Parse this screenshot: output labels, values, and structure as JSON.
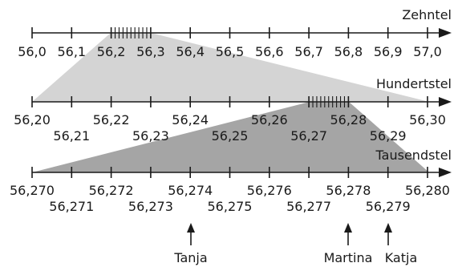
{
  "colors": {
    "light_fill": "#d4d4d4",
    "dark_fill": "#a5a5a5",
    "line": "#1a1a1a"
  },
  "scales": [
    {
      "title": "Zehntel",
      "labels_upper": [
        "56,0",
        "56,1",
        "56,2",
        "56,3",
        "56,4",
        "56,5",
        "56,6",
        "56,7",
        "56,8",
        "56,9",
        "57,0"
      ],
      "labels_lower": []
    },
    {
      "title": "Hundertstel",
      "labels_upper": [
        "56,20",
        "56,22",
        "56,24",
        "56,26",
        "56,28",
        "56,30"
      ],
      "labels_lower": [
        "56,21",
        "56,23",
        "56,25",
        "56,27",
        "56,29"
      ]
    },
    {
      "title": "Tausendstel",
      "labels_upper": [
        "56,270",
        "56,272",
        "56,274",
        "56,276",
        "56,278",
        "56,280"
      ],
      "labels_lower": [
        "56,271",
        "56,273",
        "56,275",
        "56,277",
        "56,279"
      ]
    }
  ],
  "markers": [
    {
      "name": "Tanja",
      "value": "56,274"
    },
    {
      "name": "Martina",
      "value": "56,278"
    },
    {
      "name": "Katja",
      "value": "56,279"
    }
  ]
}
